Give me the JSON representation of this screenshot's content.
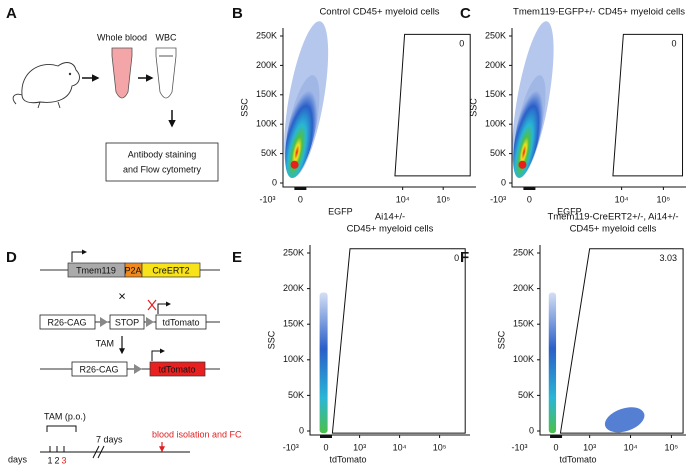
{
  "panels": {
    "A": {
      "letter": "A",
      "whole_blood": "Whole blood",
      "wbc": "WBC",
      "box": [
        "Antibody staining",
        "and Flow cytometry"
      ]
    },
    "B": {
      "letter": "B",
      "title": [
        "Control CD45+ myeloid cells"
      ],
      "ylabel": "SSC",
      "xlabel": "EGFP",
      "yticks": [
        "0",
        "50K",
        "100K",
        "150K",
        "200K",
        "250K"
      ],
      "xticks": [
        "-10³",
        "0",
        "10⁴",
        "10⁵"
      ],
      "gate": "0"
    },
    "C": {
      "letter": "C",
      "title": [
        "Tmem119-EGFP+/- CD45+ myeloid cells"
      ],
      "ylabel": "SSC",
      "xlabel": "EGFP",
      "yticks": [
        "0",
        "50K",
        "100K",
        "150K",
        "200K",
        "250K"
      ],
      "xticks": [
        "-10³",
        "0",
        "10⁴",
        "10⁵"
      ],
      "gate": "0"
    },
    "D": {
      "letter": "D",
      "tmem119": "Tmem119",
      "p2a": "P2A",
      "creert2": "CreERT2",
      "cross": "×",
      "r26cag": "R26-CAG",
      "stop": "STOP",
      "tdtomato": "tdTomato",
      "tam": "TAM",
      "r26cag2": "R26-CAG",
      "tdtomato2": "tdTomato",
      "tam_po": "TAM (p.o.)",
      "seven_days": "7 days",
      "blood": "blood isolation and FC",
      "days": "days",
      "d1": "1",
      "d2": "2",
      "d3": "3"
    },
    "E": {
      "letter": "E",
      "title": [
        "Ai14+/-",
        "CD45+ myeloid cells"
      ],
      "ylabel": "SSC",
      "xlabel": "tdTomato",
      "yticks": [
        "0",
        "50K",
        "100K",
        "150K",
        "200K",
        "250K"
      ],
      "xticks": [
        "-10³",
        "0",
        "10³",
        "10⁴",
        "10⁵"
      ],
      "gate": "0"
    },
    "F": {
      "letter": "F",
      "title": [
        "Tmem119-CreERT2+/-, Ai14+/-",
        "CD45+ myeloid cells"
      ],
      "ylabel": "SSC",
      "xlabel": "tdTomato",
      "yticks": [
        "0",
        "50K",
        "100K",
        "150K",
        "200K",
        "250K"
      ],
      "xticks": [
        "-10³",
        "0",
        "10³",
        "10⁴",
        "10⁵"
      ],
      "gate": "3.03"
    }
  }
}
